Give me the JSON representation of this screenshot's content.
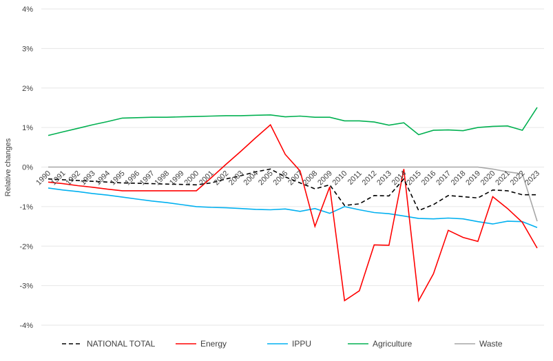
{
  "chart_data": {
    "type": "line",
    "title": "",
    "xlabel": "",
    "ylabel": "Relative changes",
    "ylim": [
      -4,
      4
    ],
    "yticks": [
      "4%",
      "3%",
      "2%",
      "1%",
      "0%",
      "-1%",
      "-2%",
      "-3%",
      "-4%"
    ],
    "grid": true,
    "legend_position": "bottom",
    "categories": [
      "1990",
      "1991",
      "1992",
      "1993",
      "1994",
      "1995",
      "1996",
      "1997",
      "1998",
      "1999",
      "2000",
      "2001",
      "2002",
      "2003",
      "2004",
      "2005",
      "2006",
      "2007",
      "2008",
      "2009",
      "2010",
      "2011",
      "2012",
      "2013",
      "2014",
      "2015",
      "2016",
      "2017",
      "2018",
      "2019",
      "2020",
      "2021",
      "2022",
      "2023"
    ],
    "series": [
      {
        "name": "NATIONAL TOTAL",
        "color": "#000000",
        "dash": true,
        "values": [
          -0.3,
          -0.32,
          -0.34,
          -0.36,
          -0.38,
          -0.4,
          -0.41,
          -0.42,
          -0.43,
          -0.44,
          -0.45,
          -0.4,
          -0.3,
          -0.22,
          -0.12,
          -0.05,
          -0.25,
          -0.4,
          -0.55,
          -0.45,
          -0.97,
          -0.93,
          -0.72,
          -0.73,
          -0.3,
          -1.1,
          -0.95,
          -0.72,
          -0.75,
          -0.78,
          -0.58,
          -0.6,
          -0.7,
          -0.7
        ]
      },
      {
        "name": "Energy",
        "color": "#ff0000",
        "dash": false,
        "values": [
          -0.38,
          -0.42,
          -0.47,
          -0.51,
          -0.56,
          -0.6,
          -0.6,
          -0.6,
          -0.6,
          -0.6,
          -0.6,
          -0.27,
          0.07,
          0.4,
          0.74,
          1.07,
          0.32,
          -0.1,
          -1.5,
          -0.5,
          -3.38,
          -3.13,
          -1.97,
          -1.98,
          -0.05,
          -3.38,
          -2.7,
          -1.6,
          -1.78,
          -1.88,
          -0.75,
          -1.05,
          -1.4,
          -2.05
        ]
      },
      {
        "name": "IPPU",
        "color": "#00b0f0",
        "dash": false,
        "values": [
          -0.53,
          -0.58,
          -0.62,
          -0.67,
          -0.71,
          -0.76,
          -0.81,
          -0.86,
          -0.9,
          -0.95,
          -1.0,
          -1.02,
          -1.03,
          -1.05,
          -1.07,
          -1.08,
          -1.06,
          -1.12,
          -1.05,
          -1.17,
          -1.0,
          -1.08,
          -1.15,
          -1.18,
          -1.24,
          -1.3,
          -1.31,
          -1.29,
          -1.31,
          -1.38,
          -1.44,
          -1.37,
          -1.38,
          -1.53
        ]
      },
      {
        "name": "Agriculture",
        "color": "#00b050",
        "dash": false,
        "values": [
          0.8,
          0.89,
          0.98,
          1.07,
          1.15,
          1.24,
          1.25,
          1.26,
          1.26,
          1.27,
          1.28,
          1.29,
          1.3,
          1.3,
          1.31,
          1.32,
          1.27,
          1.29,
          1.26,
          1.26,
          1.17,
          1.17,
          1.14,
          1.06,
          1.12,
          0.82,
          0.93,
          0.94,
          0.92,
          1.0,
          1.03,
          1.04,
          0.93,
          1.51
        ]
      },
      {
        "name": "Waste",
        "color": "#a6a6a6",
        "dash": false,
        "values": [
          0,
          0,
          0,
          0,
          0,
          0,
          0,
          0,
          0,
          0,
          0,
          0,
          0,
          0,
          0,
          0,
          0,
          0,
          0,
          0,
          0,
          0,
          0,
          0,
          0,
          0,
          0,
          0,
          0,
          0,
          -0.05,
          -0.12,
          -0.17,
          -1.37
        ]
      }
    ]
  }
}
